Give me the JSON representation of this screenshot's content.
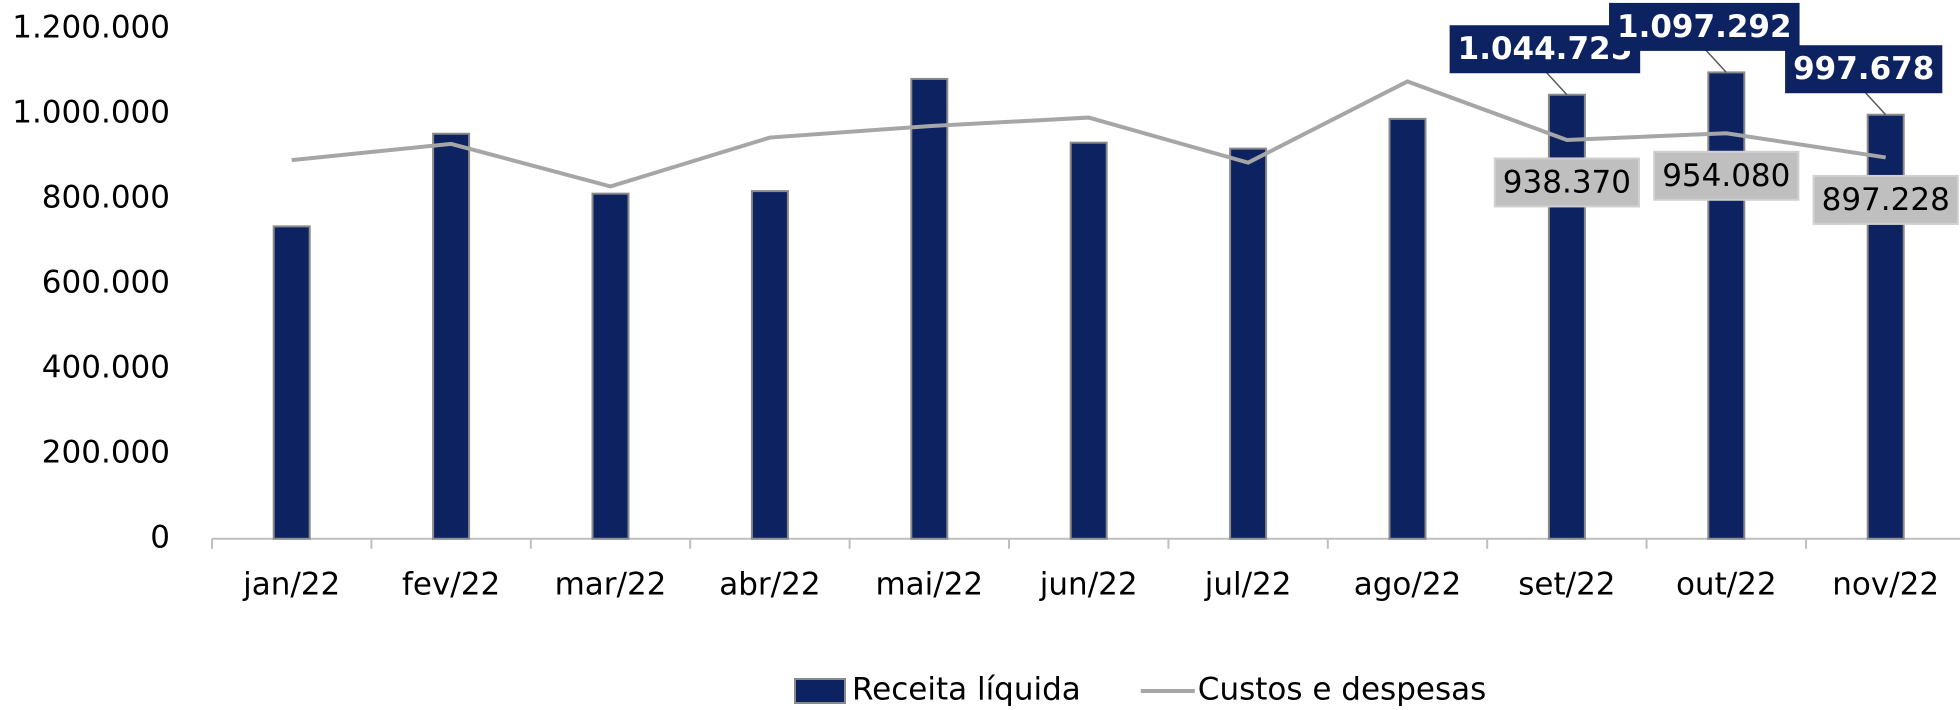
{
  "chart_data": {
    "type": "bar",
    "categories": [
      "jan/22",
      "fev/22",
      "mar/22",
      "abr/22",
      "mai/22",
      "jun/22",
      "jul/22",
      "ago/22",
      "set/22",
      "out/22",
      "nov/22"
    ],
    "series": [
      {
        "name": "Receita líquida",
        "type": "bar",
        "color": "#0d2260",
        "values": [
          735000,
          953000,
          812000,
          818000,
          1082000,
          932000,
          918000,
          988000,
          1044725,
          1097292,
          997678
        ],
        "value_labels": [
          null,
          null,
          null,
          null,
          null,
          null,
          null,
          null,
          "1.044.725",
          "1.097.292",
          "997.678"
        ]
      },
      {
        "name": "Custos e despesas",
        "type": "line",
        "color": "#a6a6a6",
        "values": [
          891000,
          929000,
          829000,
          944000,
          971000,
          991000,
          885000,
          1076000,
          938370,
          954080,
          897228
        ],
        "value_labels": [
          null,
          null,
          null,
          null,
          null,
          null,
          null,
          null,
          "938.370",
          "954.080",
          "897.228"
        ]
      }
    ],
    "ylim": [
      0,
      1200000
    ],
    "yticks": [
      0,
      {
        "value": 200000,
        "label": "200.000"
      },
      {
        "value": 400000,
        "label": "400.000"
      },
      {
        "value": 600000,
        "label": "600.000"
      },
      {
        "value": 800000,
        "label": "800.000"
      },
      {
        "value": 1000000,
        "label": "1.000.000"
      },
      {
        "value": 1200000,
        "label": "1.200.000"
      }
    ],
    "grid": false,
    "legend": "bottom"
  }
}
